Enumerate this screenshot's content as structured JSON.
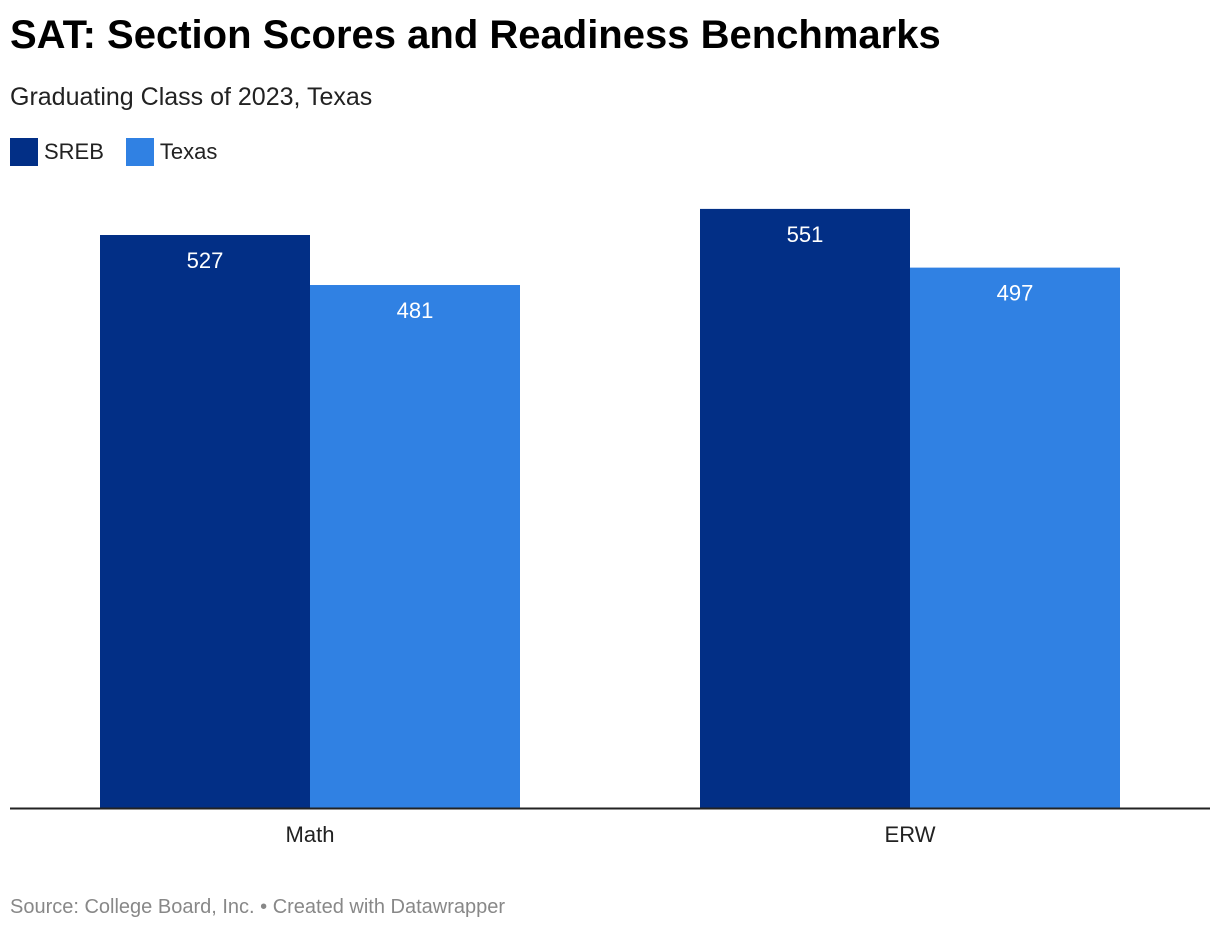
{
  "chart_data": {
    "type": "bar",
    "title": "SAT: Section Scores and Readiness Benchmarks",
    "subtitle": "Graduating Class of 2023, Texas",
    "categories": [
      "Math",
      "ERW"
    ],
    "series": [
      {
        "name": "SREB",
        "values": [
          527,
          551
        ],
        "color": "#022f86"
      },
      {
        "name": "Texas",
        "values": [
          481,
          497
        ],
        "color": "#3081e3"
      }
    ],
    "ylim": [
      0,
      600
    ],
    "grid": false,
    "legend_position": "top-left"
  },
  "footer": {
    "source_text": "Source: College Board, Inc. • Created with Datawrapper"
  }
}
